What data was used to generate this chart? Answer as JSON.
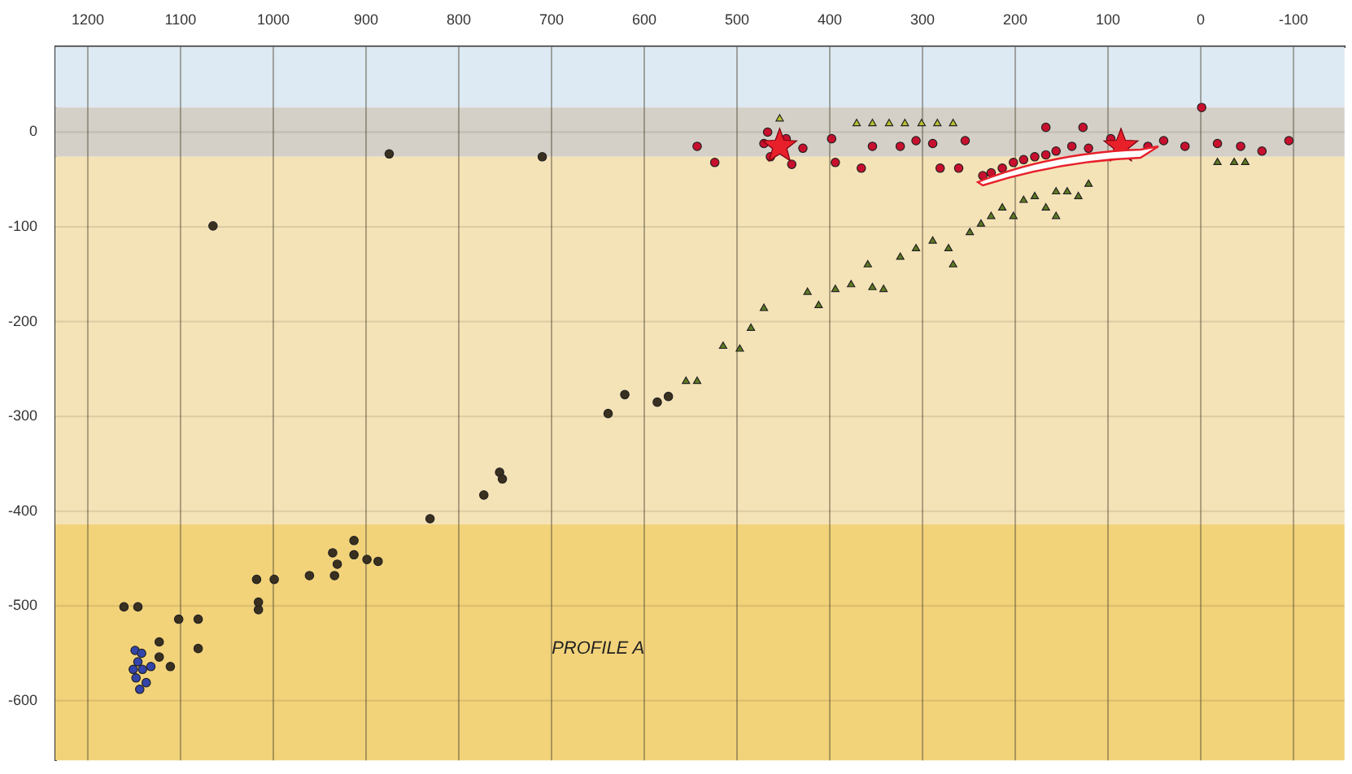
{
  "chart_data": {
    "type": "scatter",
    "xlim": [
      1235,
      -155
    ],
    "ylim": [
      -663,
      90
    ],
    "xticks": [
      1200,
      1100,
      1000,
      900,
      800,
      700,
      600,
      500,
      400,
      300,
      200,
      100,
      0,
      -100
    ],
    "yticks": [
      0,
      -100,
      -200,
      -300,
      -400,
      -500,
      -600
    ],
    "grid": true,
    "legend": false,
    "bands": [
      {
        "axis": "y",
        "from": 26,
        "to": 90,
        "color": "#dde9f3"
      },
      {
        "axis": "y",
        "from": -26,
        "to": 26,
        "color": "#d4d0c8"
      },
      {
        "axis": "y",
        "from": -414,
        "to": -26,
        "color": "#f5e3b8"
      },
      {
        "axis": "y",
        "from": -663,
        "to": -414,
        "color": "#f2d37a"
      }
    ],
    "annotations": [
      "PROFILE A"
    ],
    "series": [
      {
        "color": "#3a3020",
        "marker": "circle",
        "x": [
          875,
          710,
          1065,
          621,
          639,
          586,
          574,
          756,
          773,
          753,
          831,
          913,
          913,
          899,
          887,
          931,
          936,
          934,
          999,
          1018,
          961,
          1016,
          1016,
          1146,
          1161,
          1102,
          1081,
          1081,
          1111,
          1123,
          1123
        ],
        "values": [
          -23,
          -26,
          -99,
          -277,
          -297,
          -285,
          -279,
          -359,
          -383,
          -366,
          -408,
          -431,
          -446,
          -451,
          -453,
          -456,
          -444,
          -468,
          -472,
          -472,
          -468,
          -504,
          -496,
          -501,
          -501,
          -514,
          -514,
          -545,
          -564,
          -538,
          -554
        ]
      },
      {
        "color": "#3344aa",
        "marker": "circle",
        "x": [
          1149,
          1146,
          1141,
          1148,
          1137,
          1144,
          1151,
          1132,
          1142
        ],
        "values": [
          -547,
          -559,
          -567,
          -576,
          -581,
          -588,
          -567,
          -564,
          -550
        ]
      },
      {
        "color": "#5e7a22",
        "marker": "triangle",
        "x": [
          555,
          543,
          515,
          497,
          485,
          471,
          424,
          412,
          394,
          377,
          354,
          342,
          359,
          324,
          307,
          289,
          272,
          267,
          249,
          237,
          226,
          214,
          202,
          191,
          179,
          167,
          156,
          144,
          132,
          156,
          121,
          -18,
          -36,
          -48
        ],
        "values": [
          -263,
          -263,
          -226,
          -229,
          -207,
          -186,
          -169,
          -183,
          -166,
          -161,
          -164,
          -166,
          -140,
          -132,
          -123,
          -115,
          -123,
          -140,
          -106,
          -97,
          -89,
          -80,
          -89,
          -72,
          -68,
          -80,
          -89,
          -63,
          -68,
          -63,
          -55,
          -32,
          -32,
          -32
        ]
      },
      {
        "color": "#b8c030",
        "marker": "triangle",
        "x": [
          454,
          371,
          354,
          336,
          319,
          301,
          284,
          267
        ],
        "values": [
          14,
          9,
          9,
          9,
          9,
          9,
          9,
          9
        ]
      },
      {
        "color": "#c8102e",
        "marker": "circle",
        "x": [
          471,
          464,
          447,
          429,
          467,
          441,
          543,
          524,
          398,
          394,
          366,
          354,
          324,
          307,
          289,
          281,
          254,
          261,
          235,
          226,
          214,
          202,
          191,
          179,
          167,
          156,
          139,
          121,
          167,
          127,
          97,
          57,
          40,
          17,
          -1,
          -18,
          -43,
          -95,
          -66
        ],
        "values": [
          -12,
          -26,
          -7,
          -17,
          0,
          -34,
          -15,
          -32,
          -7,
          -32,
          -38,
          -15,
          -15,
          -9,
          -12,
          -38,
          -9,
          -38,
          -46,
          -43,
          -38,
          -32,
          -29,
          -26,
          -24,
          -20,
          -15,
          -17,
          5,
          5,
          -7,
          -15,
          -9,
          -15,
          26,
          -12,
          -15,
          -9,
          -20
        ]
      },
      {
        "color": "#e8202a",
        "marker": "star",
        "x": [
          454,
          86
        ],
        "values": [
          -15,
          -15
        ]
      }
    ]
  }
}
